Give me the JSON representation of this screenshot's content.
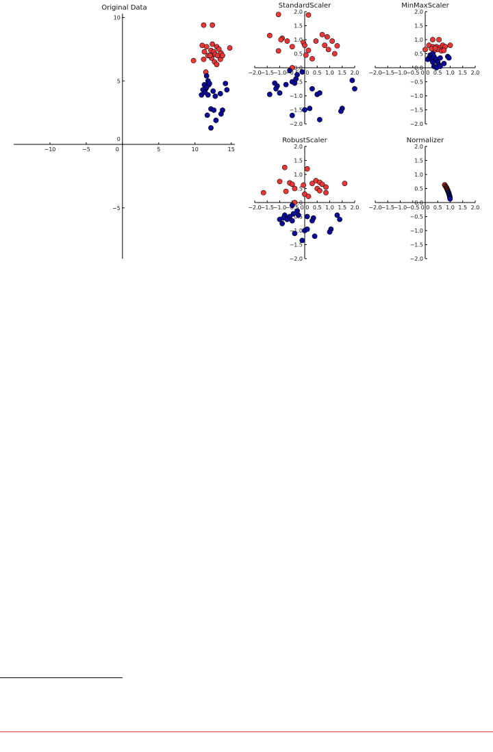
{
  "colors": {
    "red": "#ee3838",
    "blue": "#0a0a96",
    "edge": "#000000"
  },
  "chart_data": [
    {
      "type": "scatter",
      "title": "Original Data",
      "xlabel": "",
      "ylabel": "",
      "xlim": [
        -15,
        15.5
      ],
      "ylim": [
        -9,
        10.3
      ],
      "xticks": [
        -10,
        -5,
        0,
        5,
        10,
        15
      ],
      "yticks": [
        10,
        5,
        0,
        -5
      ],
      "grid": false,
      "series": [
        {
          "color": "red",
          "points": [
            [
              11.2,
              9.4
            ],
            [
              12.4,
              9.4
            ],
            [
              11.0,
              7.8
            ],
            [
              11.6,
              7.7
            ],
            [
              12.2,
              7.4
            ],
            [
              12.6,
              7.3
            ],
            [
              13.0,
              7.7
            ],
            [
              13.3,
              7.5
            ],
            [
              12.8,
              7.1
            ],
            [
              13.1,
              7.0
            ],
            [
              13.6,
              7.2
            ],
            [
              14.8,
              7.6
            ],
            [
              11.3,
              7.3
            ],
            [
              11.8,
              7.0
            ],
            [
              12.3,
              6.8
            ],
            [
              12.7,
              6.5
            ],
            [
              13.0,
              6.3
            ],
            [
              13.5,
              6.7
            ],
            [
              11.2,
              6.7
            ],
            [
              12.1,
              7.0
            ],
            [
              9.8,
              6.6
            ],
            [
              13.8,
              7.0
            ],
            [
              12.4,
              7.9
            ],
            [
              11.5,
              5.7
            ]
          ]
        },
        {
          "color": "blue",
          "points": [
            [
              11.6,
              5.4
            ],
            [
              11.8,
              5.0
            ],
            [
              11.3,
              4.7
            ],
            [
              11.9,
              4.7
            ],
            [
              11.5,
              4.4
            ],
            [
              11.1,
              4.3
            ],
            [
              11.4,
              4.1
            ],
            [
              10.9,
              3.9
            ],
            [
              11.6,
              4.5
            ],
            [
              11.8,
              3.9
            ],
            [
              12.5,
              4.2
            ],
            [
              12.8,
              3.8
            ],
            [
              14.2,
              4.8
            ],
            [
              14.4,
              4.3
            ],
            [
              13.5,
              4.0
            ],
            [
              12.2,
              2.8
            ],
            [
              12.6,
              2.7
            ],
            [
              13.8,
              2.7
            ],
            [
              13.6,
              2.4
            ],
            [
              11.7,
              2.3
            ],
            [
              12.9,
              1.9
            ],
            [
              12.2,
              1.3
            ],
            [
              12.0,
              4.8
            ]
          ]
        }
      ]
    },
    {
      "type": "scatter",
      "title": "StandardScaler",
      "xlim": [
        -2.0,
        2.0
      ],
      "ylim": [
        -2.0,
        2.0
      ],
      "xticks": [
        -2.0,
        -1.5,
        -1.0,
        -0.5,
        0.0,
        0.5,
        1.0,
        1.5,
        2.0
      ],
      "yticks": [
        2.0,
        1.5,
        1.0,
        0.5,
        0.0,
        -0.5,
        -1.0,
        -1.5,
        -2.0
      ],
      "grid": false,
      "series": [
        {
          "color": "red",
          "points": [
            [
              -1.05,
              1.9
            ],
            [
              0.15,
              1.88
            ],
            [
              -1.4,
              1.15
            ],
            [
              -0.9,
              1.05
            ],
            [
              -0.95,
              1.0
            ],
            [
              -0.7,
              0.95
            ],
            [
              -0.05,
              0.9
            ],
            [
              0.0,
              0.8
            ],
            [
              0.7,
              1.18
            ],
            [
              0.9,
              1.1
            ],
            [
              0.45,
              0.95
            ],
            [
              1.1,
              0.95
            ],
            [
              0.8,
              0.8
            ],
            [
              1.3,
              0.78
            ],
            [
              -0.5,
              0.75
            ],
            [
              0.15,
              0.62
            ],
            [
              0.95,
              0.65
            ],
            [
              1.2,
              0.5
            ],
            [
              -1.05,
              0.6
            ],
            [
              0.05,
              0.45
            ],
            [
              0.3,
              0.32
            ],
            [
              -0.5,
              0.0
            ]
          ]
        },
        {
          "color": "blue",
          "points": [
            [
              -0.6,
              -0.1
            ],
            [
              -0.3,
              -0.25
            ],
            [
              -0.1,
              -0.15
            ],
            [
              -0.35,
              -0.4
            ],
            [
              -0.5,
              -0.5
            ],
            [
              -0.4,
              -0.55
            ],
            [
              -1.2,
              -0.55
            ],
            [
              -1.1,
              -0.65
            ],
            [
              -1.15,
              -0.75
            ],
            [
              -0.75,
              -0.6
            ],
            [
              0.3,
              -0.75
            ],
            [
              0.5,
              -0.95
            ],
            [
              0.6,
              -0.9
            ],
            [
              1.9,
              -0.45
            ],
            [
              2.0,
              -0.75
            ],
            [
              -1.4,
              -0.95
            ],
            [
              -1.0,
              -0.9
            ],
            [
              0.0,
              -1.5
            ],
            [
              0.2,
              -1.45
            ],
            [
              1.5,
              -1.45
            ],
            [
              1.45,
              -1.55
            ],
            [
              -0.5,
              -1.7
            ],
            [
              0.6,
              -1.85
            ]
          ]
        }
      ]
    },
    {
      "type": "scatter",
      "title": "MinMaxScaler",
      "xlim": [
        -2.0,
        2.0
      ],
      "ylim": [
        -2.0,
        2.0
      ],
      "xticks": [
        -2.0,
        -1.5,
        -1.0,
        -0.5,
        0.0,
        0.5,
        1.0,
        1.5,
        2.0
      ],
      "yticks": [
        2.0,
        1.5,
        1.0,
        0.5,
        0.0,
        -0.5,
        -1.0,
        -1.5,
        -2.0
      ],
      "grid": false,
      "series": [
        {
          "color": "red",
          "points": [
            [
              0.3,
              1.0
            ],
            [
              0.55,
              1.0
            ],
            [
              0.15,
              0.8
            ],
            [
              0.3,
              0.75
            ],
            [
              0.45,
              0.75
            ],
            [
              0.6,
              0.72
            ],
            [
              0.7,
              0.8
            ],
            [
              0.8,
              0.75
            ],
            [
              0.5,
              0.65
            ],
            [
              0.35,
              0.6
            ],
            [
              0.25,
              0.68
            ],
            [
              0.65,
              0.6
            ],
            [
              1.0,
              0.8
            ],
            [
              0.0,
              0.65
            ],
            [
              0.75,
              0.62
            ],
            [
              0.4,
              0.7
            ]
          ]
        },
        {
          "color": "blue",
          "points": [
            [
              0.2,
              0.45
            ],
            [
              0.3,
              0.5
            ],
            [
              0.15,
              0.35
            ],
            [
              0.25,
              0.3
            ],
            [
              0.35,
              0.4
            ],
            [
              0.45,
              0.3
            ],
            [
              0.6,
              0.35
            ],
            [
              0.1,
              0.3
            ],
            [
              0.5,
              0.2
            ],
            [
              0.3,
              0.2
            ],
            [
              0.9,
              0.4
            ],
            [
              0.95,
              0.35
            ],
            [
              0.55,
              0.1
            ],
            [
              0.35,
              0.05
            ],
            [
              0.45,
              0.0
            ],
            [
              0.75,
              0.15
            ],
            [
              0.6,
              0.05
            ]
          ]
        }
      ]
    },
    {
      "type": "scatter",
      "title": "RobustScaler",
      "xlim": [
        -2.0,
        2.0
      ],
      "ylim": [
        -2.0,
        2.0
      ],
      "xticks": [
        -2.0,
        -1.5,
        -1.0,
        -0.5,
        0.0,
        0.5,
        1.0,
        1.5,
        2.0
      ],
      "yticks": [
        2.0,
        1.5,
        1.0,
        0.5,
        0.0,
        -0.5,
        -1.0,
        -1.5,
        -2.0
      ],
      "grid": false,
      "series": [
        {
          "color": "red",
          "points": [
            [
              -0.8,
              1.25
            ],
            [
              0.1,
              1.2
            ],
            [
              -1.0,
              0.75
            ],
            [
              -0.6,
              0.7
            ],
            [
              -0.5,
              0.65
            ],
            [
              -0.05,
              0.62
            ],
            [
              -0.4,
              0.5
            ],
            [
              0.45,
              0.78
            ],
            [
              0.6,
              0.72
            ],
            [
              0.7,
              0.65
            ],
            [
              0.3,
              0.68
            ],
            [
              0.85,
              0.55
            ],
            [
              0.5,
              0.5
            ],
            [
              0.6,
              0.42
            ],
            [
              1.6,
              0.68
            ],
            [
              -0.75,
              0.4
            ],
            [
              -1.65,
              0.35
            ],
            [
              0.0,
              0.3
            ],
            [
              0.15,
              0.22
            ],
            [
              0.85,
              0.35
            ],
            [
              -0.4,
              0.0
            ]
          ]
        },
        {
          "color": "blue",
          "points": [
            [
              -0.5,
              -0.1
            ],
            [
              -0.3,
              -0.3
            ],
            [
              -0.45,
              -0.4
            ],
            [
              -0.25,
              -0.45
            ],
            [
              -0.6,
              -0.5
            ],
            [
              -0.8,
              -0.45
            ],
            [
              -0.85,
              -0.55
            ],
            [
              -0.7,
              -0.6
            ],
            [
              -1.0,
              -0.6
            ],
            [
              -0.5,
              -0.65
            ],
            [
              -0.9,
              -0.75
            ],
            [
              0.1,
              -0.5
            ],
            [
              0.35,
              -0.55
            ],
            [
              0.3,
              -0.65
            ],
            [
              1.3,
              -0.45
            ],
            [
              1.4,
              -0.6
            ],
            [
              0.0,
              -1.0
            ],
            [
              0.1,
              -0.95
            ],
            [
              1.05,
              -0.95
            ],
            [
              1.0,
              -1.05
            ],
            [
              -0.4,
              -1.1
            ],
            [
              0.4,
              -1.2
            ],
            [
              -0.1,
              -1.35
            ]
          ]
        }
      ]
    },
    {
      "type": "scatter",
      "title": "Normalizer",
      "xlim": [
        -2.0,
        2.0
      ],
      "ylim": [
        -2.0,
        2.0
      ],
      "xticks": [
        -2.0,
        -1.5,
        -1.0,
        -0.5,
        0.0,
        0.5,
        1.0,
        1.5,
        2.0
      ],
      "yticks": [
        2.0,
        1.5,
        1.0,
        0.5,
        0.0,
        -0.5,
        -1.0,
        -1.5,
        -2.0
      ],
      "grid": false,
      "series": [
        {
          "color": "red",
          "points": [
            [
              0.78,
              0.63
            ],
            [
              0.8,
              0.6
            ],
            [
              0.82,
              0.57
            ],
            [
              0.84,
              0.55
            ],
            [
              0.85,
              0.53
            ],
            [
              0.86,
              0.51
            ],
            [
              0.87,
              0.49
            ],
            [
              0.88,
              0.47
            ],
            [
              0.89,
              0.45
            ],
            [
              0.9,
              0.43
            ],
            [
              0.91,
              0.41
            ],
            [
              0.92,
              0.39
            ]
          ]
        },
        {
          "color": "blue",
          "points": [
            [
              0.93,
              0.37
            ],
            [
              0.94,
              0.34
            ],
            [
              0.95,
              0.31
            ],
            [
              0.96,
              0.28
            ],
            [
              0.97,
              0.25
            ],
            [
              0.98,
              0.22
            ],
            [
              0.985,
              0.19
            ],
            [
              0.99,
              0.16
            ],
            [
              0.995,
              0.13
            ]
          ]
        }
      ]
    }
  ]
}
